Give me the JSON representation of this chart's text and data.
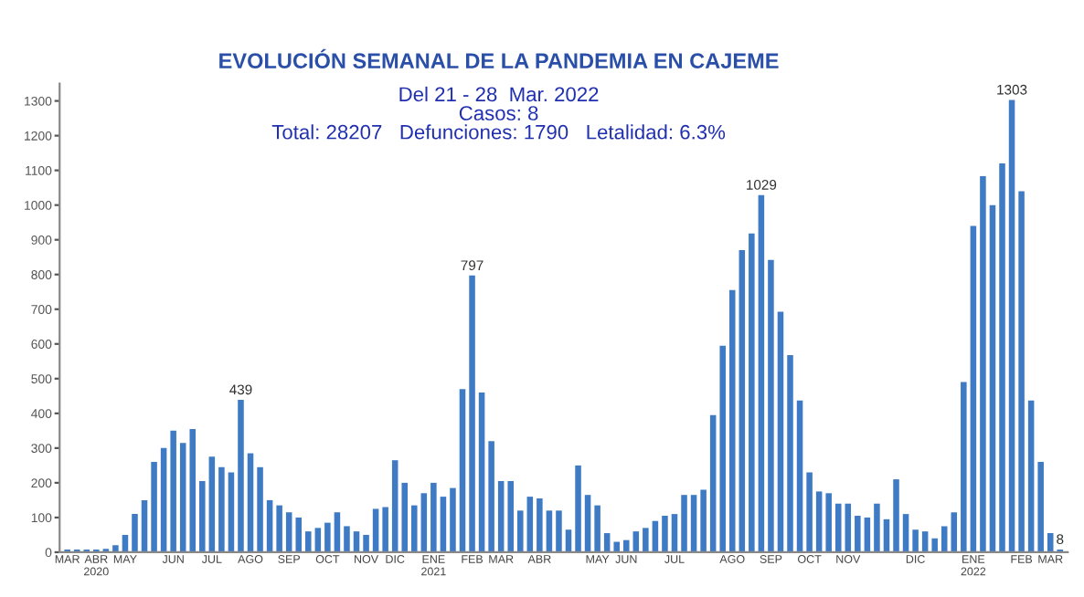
{
  "chart_data": {
    "type": "bar",
    "title": "EVOLUCIÓN SEMANAL DE LA PANDEMIA EN CAJEME",
    "subtitle": "Del 21 - 28  Mar. 2022\nCasos: 8\nTotal: 28207   Defunciones: 1790   Letalidad: 6.3%",
    "categories": [
      "MAR",
      null,
      null,
      "ABR\n2020",
      null,
      null,
      "MAY",
      null,
      null,
      null,
      null,
      "JUN",
      null,
      null,
      null,
      "JUL",
      null,
      null,
      null,
      "AGO",
      null,
      null,
      null,
      "SEP",
      null,
      null,
      null,
      "OCT",
      null,
      null,
      null,
      "NOV",
      null,
      null,
      "DIC",
      null,
      null,
      null,
      "ENE\n2021",
      null,
      null,
      null,
      "FEB",
      null,
      null,
      "MAR",
      null,
      null,
      null,
      "ABR",
      null,
      null,
      null,
      null,
      null,
      "MAY",
      null,
      null,
      "JUN",
      null,
      null,
      null,
      null,
      "JUL",
      null,
      null,
      null,
      null,
      null,
      "AGO",
      null,
      null,
      null,
      "SEP",
      null,
      null,
      null,
      "OCT",
      null,
      null,
      null,
      "NOV",
      null,
      null,
      null,
      null,
      null,
      null,
      "DIC",
      null,
      null,
      null,
      null,
      null,
      "ENE\n2022",
      null,
      null,
      null,
      null,
      "FEB",
      null,
      null,
      "MAR",
      null
    ],
    "values": [
      8,
      8,
      8,
      8,
      10,
      20,
      50,
      110,
      150,
      260,
      300,
      350,
      315,
      355,
      205,
      275,
      245,
      230,
      439,
      285,
      245,
      150,
      135,
      115,
      100,
      60,
      70,
      85,
      115,
      75,
      60,
      50,
      125,
      130,
      265,
      200,
      135,
      170,
      200,
      160,
      185,
      470,
      797,
      460,
      320,
      205,
      205,
      120,
      160,
      155,
      120,
      120,
      65,
      250,
      165,
      135,
      55,
      30,
      35,
      60,
      70,
      90,
      105,
      110,
      165,
      165,
      180,
      395,
      595,
      755,
      870,
      918,
      1029,
      842,
      693,
      568,
      437,
      230,
      175,
      170,
      140,
      140,
      105,
      100,
      140,
      95,
      210,
      110,
      65,
      60,
      40,
      75,
      115,
      490,
      940,
      1083,
      1000,
      1120,
      1303,
      1040,
      437,
      260,
      55,
      8
    ],
    "value_labels": [
      null,
      null,
      null,
      null,
      null,
      null,
      null,
      null,
      null,
      null,
      null,
      null,
      null,
      null,
      null,
      null,
      null,
      null,
      "439",
      null,
      null,
      null,
      null,
      null,
      null,
      null,
      null,
      null,
      null,
      null,
      null,
      null,
      null,
      null,
      null,
      null,
      null,
      null,
      null,
      null,
      null,
      null,
      "797",
      null,
      null,
      null,
      null,
      null,
      null,
      null,
      null,
      null,
      null,
      null,
      null,
      null,
      null,
      null,
      null,
      null,
      null,
      null,
      null,
      null,
      null,
      null,
      null,
      null,
      null,
      null,
      null,
      null,
      "1029",
      null,
      null,
      null,
      null,
      null,
      null,
      null,
      null,
      null,
      null,
      null,
      null,
      null,
      null,
      null,
      null,
      null,
      null,
      null,
      null,
      null,
      null,
      null,
      null,
      null,
      "1303",
      null,
      null,
      null,
      null,
      "8"
    ],
    "color": "#3f7bc4",
    "ylim": [
      0,
      1350
    ],
    "yticks": [
      0,
      100,
      200,
      300,
      400,
      500,
      600,
      700,
      800,
      900,
      1000,
      1100,
      1200,
      1300
    ],
    "grid": false,
    "legend": false
  }
}
